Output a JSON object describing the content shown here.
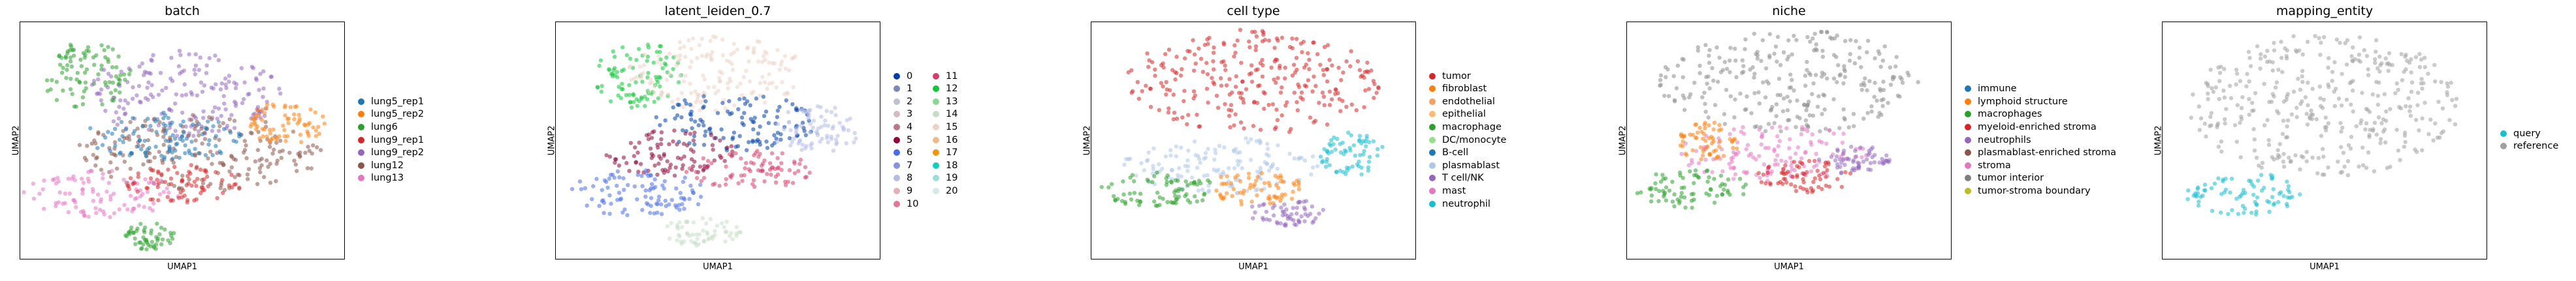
{
  "chart_data": [
    {
      "type": "scatter",
      "title": "batch",
      "xlabel": "UMAP1",
      "ylabel": "UMAP2",
      "legend_placement": "right",
      "series": [
        {
          "name": "lung5_rep1",
          "color": "#1f77b4"
        },
        {
          "name": "lung5_rep2",
          "color": "#ff7f0e"
        },
        {
          "name": "lung6",
          "color": "#2ca02c"
        },
        {
          "name": "lung9_rep1",
          "color": "#d62728"
        },
        {
          "name": "lung9_rep2",
          "color": "#9467bd"
        },
        {
          "name": "lung12",
          "color": "#8c564b"
        },
        {
          "name": "lung13",
          "color": "#e377c2"
        }
      ],
      "clusters": [
        {
          "x": 0.2,
          "y": 0.22,
          "rx": 0.14,
          "ry": 0.14,
          "color": "#2ca02c"
        },
        {
          "x": 0.5,
          "y": 0.3,
          "rx": 0.3,
          "ry": 0.18,
          "color": "#9467bd"
        },
        {
          "x": 0.55,
          "y": 0.55,
          "rx": 0.38,
          "ry": 0.16,
          "color": "#8c564b"
        },
        {
          "x": 0.45,
          "y": 0.48,
          "rx": 0.25,
          "ry": 0.1,
          "color": "#1f77b4"
        },
        {
          "x": 0.82,
          "y": 0.42,
          "rx": 0.12,
          "ry": 0.1,
          "color": "#ff7f0e"
        },
        {
          "x": 0.25,
          "y": 0.72,
          "rx": 0.24,
          "ry": 0.1,
          "color": "#e377c2"
        },
        {
          "x": 0.5,
          "y": 0.68,
          "rx": 0.18,
          "ry": 0.08,
          "color": "#d62728"
        },
        {
          "x": 0.4,
          "y": 0.9,
          "rx": 0.08,
          "ry": 0.06,
          "color": "#2ca02c"
        }
      ]
    },
    {
      "type": "scatter",
      "title": "latent_leiden_0.7",
      "xlabel": "UMAP1",
      "ylabel": "UMAP2",
      "legend_placement": "right",
      "series": [
        {
          "name": "0",
          "color": "#023fa5"
        },
        {
          "name": "1",
          "color": "#7d87b9"
        },
        {
          "name": "2",
          "color": "#bec1d4"
        },
        {
          "name": "3",
          "color": "#d6bcc0"
        },
        {
          "name": "4",
          "color": "#bb7784"
        },
        {
          "name": "5",
          "color": "#8e063b"
        },
        {
          "name": "6",
          "color": "#4a6fe3"
        },
        {
          "name": "7",
          "color": "#8595e1"
        },
        {
          "name": "8",
          "color": "#b5bbe3"
        },
        {
          "name": "9",
          "color": "#e6afb9"
        },
        {
          "name": "10",
          "color": "#e07b91"
        },
        {
          "name": "11",
          "color": "#d33f6a"
        },
        {
          "name": "12",
          "color": "#11c638"
        },
        {
          "name": "13",
          "color": "#8dd593"
        },
        {
          "name": "14",
          "color": "#c6dec7"
        },
        {
          "name": "15",
          "color": "#ead3c6"
        },
        {
          "name": "16",
          "color": "#f0b98d"
        },
        {
          "name": "17",
          "color": "#ef9708"
        },
        {
          "name": "18",
          "color": "#0fcfc0"
        },
        {
          "name": "19",
          "color": "#9cded6"
        },
        {
          "name": "20",
          "color": "#d5eae7"
        }
      ],
      "clusters": [
        {
          "x": 0.25,
          "y": 0.22,
          "rx": 0.14,
          "ry": 0.14,
          "color": "#11c638"
        },
        {
          "x": 0.5,
          "y": 0.22,
          "rx": 0.28,
          "ry": 0.16,
          "color": "#ead3c6"
        },
        {
          "x": 0.55,
          "y": 0.42,
          "rx": 0.25,
          "ry": 0.12,
          "color": "#023fa5"
        },
        {
          "x": 0.35,
          "y": 0.55,
          "rx": 0.2,
          "ry": 0.1,
          "color": "#8e063b"
        },
        {
          "x": 0.8,
          "y": 0.45,
          "rx": 0.14,
          "ry": 0.1,
          "color": "#b5bbe3"
        },
        {
          "x": 0.25,
          "y": 0.72,
          "rx": 0.22,
          "ry": 0.1,
          "color": "#4a6fe3"
        },
        {
          "x": 0.6,
          "y": 0.62,
          "rx": 0.2,
          "ry": 0.08,
          "color": "#d33f6a"
        },
        {
          "x": 0.45,
          "y": 0.88,
          "rx": 0.12,
          "ry": 0.06,
          "color": "#c6dec7"
        }
      ]
    },
    {
      "type": "scatter",
      "title": "cell type",
      "xlabel": "UMAP1",
      "ylabel": "UMAP2",
      "legend_placement": "right",
      "series": [
        {
          "name": "tumor",
          "color": "#d62728"
        },
        {
          "name": "fibroblast",
          "color": "#ff7f0e"
        },
        {
          "name": "endothelial",
          "color": "#f4a261"
        },
        {
          "name": "epithelial",
          "color": "#ffbb78"
        },
        {
          "name": "macrophage",
          "color": "#2ca02c"
        },
        {
          "name": "DC/monocyte",
          "color": "#98df8a"
        },
        {
          "name": "B-cell",
          "color": "#1f77b4"
        },
        {
          "name": "plasmablast",
          "color": "#aec7e8"
        },
        {
          "name": "T cell/NK",
          "color": "#9467bd"
        },
        {
          "name": "mast",
          "color": "#e377c2"
        },
        {
          "name": "neutrophil",
          "color": "#17becf"
        }
      ],
      "clusters": [
        {
          "x": 0.5,
          "y": 0.25,
          "rx": 0.4,
          "ry": 0.22,
          "color": "#d62728"
        },
        {
          "x": 0.4,
          "y": 0.6,
          "rx": 0.3,
          "ry": 0.12,
          "color": "#aec7e8"
        },
        {
          "x": 0.8,
          "y": 0.55,
          "rx": 0.1,
          "ry": 0.1,
          "color": "#17becf"
        },
        {
          "x": 0.2,
          "y": 0.7,
          "rx": 0.18,
          "ry": 0.08,
          "color": "#2ca02c"
        },
        {
          "x": 0.5,
          "y": 0.7,
          "rx": 0.15,
          "ry": 0.07,
          "color": "#ff7f0e"
        },
        {
          "x": 0.6,
          "y": 0.8,
          "rx": 0.12,
          "ry": 0.06,
          "color": "#9467bd"
        }
      ]
    },
    {
      "type": "scatter",
      "title": "niche",
      "xlabel": "UMAP1",
      "ylabel": "UMAP2",
      "legend_placement": "right",
      "series": [
        {
          "name": "immune",
          "color": "#1f77b4"
        },
        {
          "name": "lymphoid structure",
          "color": "#ff7f0e"
        },
        {
          "name": "macrophages",
          "color": "#2ca02c"
        },
        {
          "name": "myeloid-enriched stroma",
          "color": "#d62728"
        },
        {
          "name": "neutrophils",
          "color": "#9467bd"
        },
        {
          "name": "plasmablast-enriched stroma",
          "color": "#8c564b"
        },
        {
          "name": "stroma",
          "color": "#e377c2"
        },
        {
          "name": "tumor interior",
          "color": "#7f7f7f"
        },
        {
          "name": "tumor-stroma boundary",
          "color": "#bcbd22"
        }
      ],
      "clusters": [
        {
          "x": 0.5,
          "y": 0.25,
          "rx": 0.4,
          "ry": 0.22,
          "color": "#8c8c8c"
        },
        {
          "x": 0.45,
          "y": 0.55,
          "rx": 0.3,
          "ry": 0.12,
          "color": "#e377c2"
        },
        {
          "x": 0.25,
          "y": 0.5,
          "rx": 0.1,
          "ry": 0.08,
          "color": "#ff7f0e"
        },
        {
          "x": 0.2,
          "y": 0.7,
          "rx": 0.18,
          "ry": 0.08,
          "color": "#2ca02c"
        },
        {
          "x": 0.55,
          "y": 0.65,
          "rx": 0.15,
          "ry": 0.07,
          "color": "#d62728"
        },
        {
          "x": 0.7,
          "y": 0.58,
          "rx": 0.12,
          "ry": 0.06,
          "color": "#9467bd"
        }
      ]
    },
    {
      "type": "scatter",
      "title": "mapping_entity",
      "xlabel": "UMAP1",
      "ylabel": "UMAP2",
      "legend_placement": "right",
      "series": [
        {
          "name": "query",
          "color": "#17becf"
        },
        {
          "name": "reference",
          "color": "#a0a0a0"
        }
      ],
      "clusters": [
        {
          "x": 0.5,
          "y": 0.35,
          "rx": 0.42,
          "ry": 0.3,
          "color": "#a0a0a0"
        },
        {
          "x": 0.25,
          "y": 0.72,
          "rx": 0.18,
          "ry": 0.09,
          "color": "#17becf"
        }
      ]
    }
  ]
}
